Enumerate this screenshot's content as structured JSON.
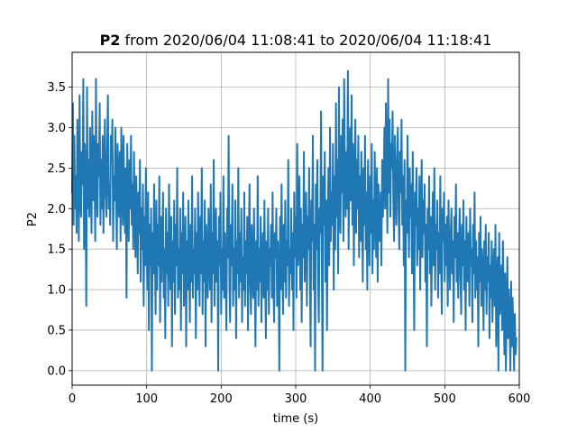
{
  "chart_data": {
    "type": "line",
    "title_bold": "P2",
    "title_rest": " from 2020/06/04 11:08:41 to 2020/06/04 11:18:41",
    "xlabel": "time (s)",
    "ylabel": "P2",
    "xlim": [
      0,
      600
    ],
    "ylim": [
      -0.18,
      3.93
    ],
    "xticks": [
      0,
      100,
      200,
      300,
      400,
      500,
      600
    ],
    "xtick_labels": [
      "0",
      "100",
      "200",
      "300",
      "400",
      "500",
      "600"
    ],
    "yticks": [
      0.0,
      0.5,
      1.0,
      1.5,
      2.0,
      2.5,
      3.0,
      3.5
    ],
    "ytick_labels": [
      "0.0",
      "0.5",
      "1.0",
      "1.5",
      "2.0",
      "2.5",
      "3.0",
      "3.5"
    ],
    "grid": true,
    "line_color": "#1f77b4",
    "series": [
      {
        "sample_interval_s": 1,
        "values": [
          2.2,
          3.3,
          1.8,
          2.9,
          2.0,
          2.4,
          1.7,
          3.1,
          2.6,
          1.6,
          3.4,
          2.1,
          1.9,
          2.7,
          2.3,
          3.6,
          1.5,
          2.8,
          2.2,
          0.8,
          3.5,
          2.0,
          2.6,
          1.9,
          3.0,
          2.4,
          1.7,
          3.2,
          2.1,
          2.9,
          2.5,
          1.6,
          3.6,
          2.2,
          1.9,
          2.8,
          2.4,
          3.3,
          1.8,
          2.6,
          2.0,
          2.9,
          1.7,
          2.5,
          3.1,
          2.2,
          1.9,
          2.7,
          3.4,
          2.0,
          2.3,
          1.8,
          2.9,
          2.6,
          3.1,
          1.6,
          2.4,
          2.1,
          3.0,
          2.2,
          1.5,
          2.8,
          2.3,
          1.9,
          2.7,
          1.6,
          3.0,
          2.4,
          1.8,
          2.9,
          2.1,
          1.7,
          2.5,
          0.9,
          2.8,
          2.2,
          1.6,
          2.6,
          2.0,
          2.9,
          1.8,
          2.3,
          1.5,
          2.7,
          2.0,
          1.4,
          2.4,
          1.9,
          1.2,
          2.2,
          1.7,
          2.6,
          1.1,
          2.0,
          1.5,
          2.3,
          0.8,
          1.9,
          1.3,
          2.5,
          1.6,
          1.0,
          2.2,
          0.5,
          1.8,
          1.3,
          2.0,
          0.0,
          1.7,
          1.2,
          2.3,
          1.5,
          0.7,
          2.1,
          1.0,
          1.8,
          1.3,
          2.4,
          0.6,
          1.9,
          1.1,
          1.6,
          2.2,
          0.9,
          1.5,
          0.4,
          2.0,
          1.2,
          1.7,
          0.8,
          2.3,
          1.4,
          1.0,
          1.9,
          0.3,
          1.6,
          1.1,
          2.1,
          0.7,
          1.8,
          1.3,
          2.5,
          0.9,
          1.5,
          1.0,
          2.0,
          0.5,
          1.7,
          1.2,
          2.2,
          0.8,
          1.4,
          1.9,
          0.3,
          1.6,
          1.0,
          2.1,
          1.3,
          0.6,
          1.8,
          1.1,
          2.4,
          0.9,
          1.5,
          1.2,
          2.0,
          0.4,
          1.7,
          1.0,
          2.2,
          1.4,
          0.8,
          1.9,
          1.2,
          2.5,
          0.7,
          1.6,
          1.1,
          2.1,
          0.3,
          1.8,
          1.3,
          0.9,
          2.0,
          1.5,
          1.0,
          2.3,
          0.6,
          1.7,
          1.2,
          2.6,
          0.8,
          1.4,
          2.0,
          1.1,
          1.6,
          0.0,
          1.9,
          1.3,
          2.2,
          0.7,
          1.5,
          1.0,
          2.4,
          0.9,
          1.7,
          1.2,
          0.5,
          2.0,
          1.4,
          2.9,
          1.1,
          0.6,
          1.8,
          1.3,
          2.3,
          0.8,
          1.5,
          1.0,
          2.1,
          0.4,
          1.6,
          1.2,
          2.5,
          0.9,
          1.7,
          1.1,
          2.0,
          0.6,
          1.4,
          1.0,
          2.2,
          0.8,
          1.6,
          1.2,
          1.9,
          0.5,
          1.5,
          2.3,
          1.1,
          0.7,
          1.8,
          1.3,
          0.9,
          2.0,
          1.2,
          0.3,
          1.6,
          1.0,
          2.4,
          0.8,
          1.5,
          1.1,
          1.9,
          0.6,
          1.4,
          1.7,
          0.9,
          2.1,
          1.2,
          0.4,
          1.6,
          1.0,
          2.0,
          0.7,
          1.5,
          1.3,
          1.8,
          0.9,
          2.2,
          1.1,
          0.6,
          1.7,
          1.4,
          2.0,
          0.8,
          1.6,
          1.2,
          0.0,
          1.9,
          1.0,
          2.3,
          1.4,
          0.7,
          1.8,
          1.1,
          2.1,
          0.9,
          1.6,
          1.3,
          2.6,
          0.8,
          1.5,
          1.2,
          2.0,
          1.0,
          1.7,
          0.5,
          2.2,
          1.4,
          1.9,
          0.9,
          2.8,
          1.3,
          1.6,
          2.4,
          1.0,
          2.0,
          0.6,
          1.8,
          1.4,
          2.7,
          1.1,
          1.7,
          2.2,
          0.8,
          1.9,
          1.5,
          2.5,
          1.2,
          0.3,
          2.1,
          1.6,
          2.9,
          1.0,
          1.8,
          0.0,
          2.3,
          1.5,
          2.6,
          1.2,
          0.6,
          2.0,
          1.7,
          3.2,
          1.4,
          0.0,
          2.4,
          1.8,
          2.7,
          1.1,
          2.1,
          0.5,
          1.9,
          2.5,
          1.3,
          3.0,
          1.6,
          2.2,
          1.8,
          2.8,
          1.0,
          2.4,
          1.5,
          3.3,
          1.9,
          2.6,
          1.2,
          3.5,
          2.0,
          1.7,
          2.9,
          2.2,
          3.1,
          1.6,
          3.6,
          2.4,
          1.9,
          2.7,
          2.0,
          3.7,
          1.5,
          2.5,
          3.0,
          2.1,
          3.4,
          1.8,
          2.8,
          1.3,
          2.3,
          3.1,
          1.7,
          2.6,
          2.0,
          2.9,
          1.4,
          2.4,
          1.6,
          2.7,
          2.1,
          1.1,
          2.5,
          1.8,
          2.9,
          1.5,
          2.2,
          1.0,
          2.6,
          1.9,
          1.3,
          2.4,
          1.7,
          2.8,
          1.2,
          2.1,
          1.5,
          2.7,
          2.0,
          1.4,
          2.5,
          1.1,
          2.3,
          1.8,
          1.6,
          2.2,
          1.3,
          2.6,
          1.9,
          2.3,
          3.0,
          2.0,
          3.3,
          2.4,
          1.7,
          3.6,
          2.2,
          3.1,
          1.9,
          2.8,
          2.5,
          3.2,
          2.1,
          1.6,
          2.9,
          2.3,
          1.8,
          2.6,
          3.0,
          2.0,
          1.5,
          2.7,
          2.2,
          3.1,
          1.8,
          2.4,
          1.3,
          2.6,
          0.0,
          2.1,
          1.7,
          2.9,
          2.0,
          1.4,
          2.5,
          1.9,
          2.3,
          1.2,
          2.7,
          1.6,
          0.5,
          2.2,
          1.8,
          2.5,
          1.3,
          2.0,
          1.5,
          2.4,
          1.0,
          1.9,
          2.6,
          1.4,
          2.1,
          1.7,
          2.3,
          1.1,
          1.8,
          0.3,
          2.0,
          1.5,
          2.4,
          1.2,
          1.9,
          0.8,
          1.6,
          2.2,
          1.3,
          2.5,
          1.0,
          1.8,
          1.5,
          2.1,
          0.9,
          1.7,
          1.2,
          2.4,
          1.4,
          0.7,
          2.0,
          1.6,
          2.2,
          1.1,
          1.8,
          1.3,
          1.9,
          0.8,
          2.1,
          1.5,
          1.0,
          1.7,
          2.0,
          1.2,
          1.6,
          0.6,
          1.9,
          1.4,
          2.3,
          1.1,
          1.7,
          0.9,
          1.5,
          2.0,
          1.2,
          0.7,
          1.8,
          1.3,
          2.1,
          1.0,
          1.6,
          0.5,
          1.9,
          1.4,
          1.1,
          1.7,
          0.8,
          2.0,
          1.3,
          1.5,
          0.6,
          1.8,
          1.2,
          2.2,
          0.9,
          1.6,
          1.0,
          1.4,
          0.3,
          1.7,
          1.1,
          1.9,
          0.8,
          1.5,
          1.2,
          0.5,
          1.6,
          1.0,
          1.8,
          0.7,
          1.4,
          1.1,
          1.7,
          0.4,
          1.3,
          0.9,
          1.6,
          0.6,
          1.2,
          1.5,
          0.8,
          1.8,
          0.3,
          1.1,
          1.4,
          0.0,
          1.7,
          0.7,
          1.0,
          1.3,
          0.5,
          1.6,
          0.9,
          0.2,
          1.2,
          0.0,
          0.8,
          1.4,
          0.4,
          1.0,
          0.6,
          0.0,
          1.1,
          0.3,
          0.9,
          0.5,
          0.0,
          0.7,
          0.2,
          0.4
        ]
      }
    ]
  }
}
